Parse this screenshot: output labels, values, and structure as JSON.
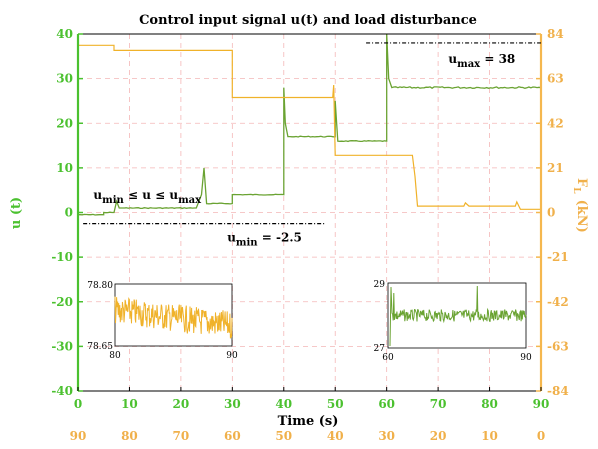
{
  "chart_data": {
    "type": "line",
    "title": "Control input signal u(t) and load disturbance",
    "xlabel": "Time (s)",
    "ylabel_left": "u (t)",
    "ylabel_right": "F_L (kN)",
    "ylabel_right_main": "F",
    "ylabel_right_sub": "L",
    "ylabel_right_unit": "(kN)",
    "xlim": [
      0,
      90
    ],
    "ylim_left": [
      -40,
      40
    ],
    "ylim_right": [
      -84,
      84
    ],
    "x_ticks": [
      "0",
      "10",
      "20",
      "30",
      "40",
      "50",
      "60",
      "70",
      "80",
      "90"
    ],
    "x_ticks_secondary": [
      "90",
      "80",
      "70",
      "60",
      "50",
      "40",
      "30",
      "20",
      "10",
      "0"
    ],
    "y_ticks_left": [
      "40",
      "30",
      "20",
      "10",
      "0",
      "-10",
      "-20",
      "-30",
      "-40"
    ],
    "y_ticks_right": [
      "84",
      "63",
      "42",
      "21",
      "0",
      "-21",
      "-42",
      "-63",
      "-84"
    ],
    "grid": true,
    "colors": {
      "u": "#6aa332",
      "load": "#f0b22a",
      "left_axis": "#4bc12f",
      "right_axis": "#f5b74e"
    },
    "series": [
      {
        "axis": "left",
        "values_x": [
          0,
          5,
          5,
          7,
          7.5,
          8,
          9,
          23,
          24,
          24.5,
          25,
          30,
          30,
          40,
          40,
          40.3,
          40.8,
          50,
          50,
          50.5,
          60,
          60,
          60.4,
          61,
          90
        ],
        "values_y": [
          -0.5,
          -0.5,
          0,
          0,
          2.5,
          1,
          1,
          1,
          4,
          10,
          2,
          2,
          4,
          4,
          28,
          20,
          17,
          17,
          25,
          16,
          16,
          40,
          30,
          28,
          28
        ]
      },
      {
        "axis": "right",
        "values_x": [
          0,
          7,
          7,
          30,
          30,
          49.5,
          49.7,
          50,
          50,
          65,
          65.5,
          66,
          70,
          75,
          75.3,
          76,
          85,
          85.3,
          86,
          90
        ],
        "values_y": [
          78.7,
          78.7,
          76.3,
          76.3,
          54.1,
          54.1,
          60,
          26.9,
          26.9,
          26.9,
          17,
          3,
          3,
          3,
          4.5,
          3,
          3,
          5,
          1.5,
          1.5
        ]
      }
    ],
    "annotations": {
      "umax_label": "u",
      "umax_sub": "max",
      "umax_value": "= 38",
      "umax": 38,
      "umin_label": "u",
      "umin_sub": "min",
      "umin_value": "= -2.5",
      "umin": -2.5,
      "constraint_u1": "u",
      "constraint_sub1": "min",
      "constraint_mid": "≤ u ≤ u",
      "constraint_sub2": "max"
    },
    "inset_load": {
      "xlim": [
        80,
        90
      ],
      "ylim": [
        78.65,
        78.8
      ],
      "x_ticks": [
        "80",
        "90"
      ],
      "y_ticks": [
        "78.80",
        "78.65"
      ]
    },
    "inset_u": {
      "xlim": [
        60,
        90
      ],
      "ylim": [
        27,
        29
      ],
      "x_ticks": [
        "60",
        "90"
      ],
      "y_ticks": [
        "29",
        "27"
      ]
    }
  }
}
